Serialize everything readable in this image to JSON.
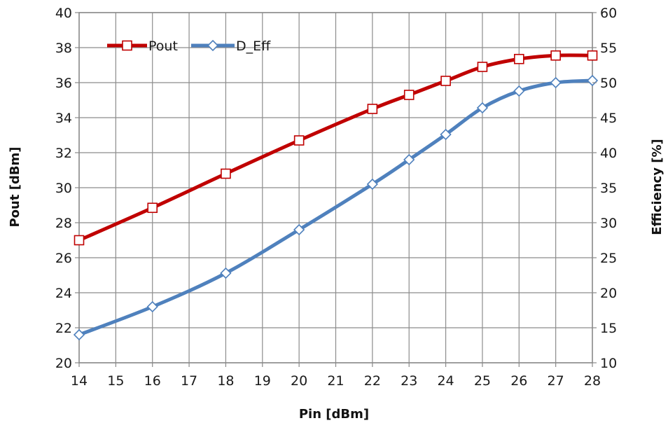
{
  "chart_data": {
    "type": "line",
    "x_ticks": [
      "14",
      "15",
      "16",
      "17",
      "18",
      "19",
      "20",
      "21",
      "22",
      "23",
      "24",
      "25",
      "26",
      "27",
      "28"
    ],
    "xlabel": "Pin [dBm]",
    "ylabel_left": "Pout [dBm]",
    "ylabel_right": "Efficiency [%]",
    "ylim_left": [
      20,
      40
    ],
    "ylim_right": [
      10,
      60
    ],
    "yticks_left": [
      20,
      22,
      24,
      26,
      28,
      30,
      32,
      34,
      36,
      38,
      40
    ],
    "yticks_right": [
      10,
      15,
      20,
      25,
      30,
      35,
      40,
      45,
      50,
      55,
      60
    ],
    "grid": true,
    "legend_position": "top-left",
    "series": [
      {
        "name": "Pout",
        "axis": "left",
        "color": "#c00000",
        "marker": "square",
        "x": [
          14,
          16,
          18,
          20,
          22,
          23,
          24,
          25,
          26,
          27,
          28
        ],
        "y": [
          27.0,
          28.85,
          30.8,
          32.7,
          34.5,
          35.3,
          36.1,
          36.9,
          37.35,
          37.55,
          37.55
        ]
      },
      {
        "name": "D_Eff",
        "axis": "right",
        "color": "#4f81bd",
        "marker": "diamond",
        "x": [
          14,
          16,
          18,
          20,
          22,
          23,
          24,
          25,
          26,
          27,
          28
        ],
        "y": [
          14.0,
          18.0,
          22.8,
          29.0,
          35.5,
          39.0,
          42.6,
          46.4,
          48.8,
          50.0,
          50.3
        ]
      }
    ]
  }
}
